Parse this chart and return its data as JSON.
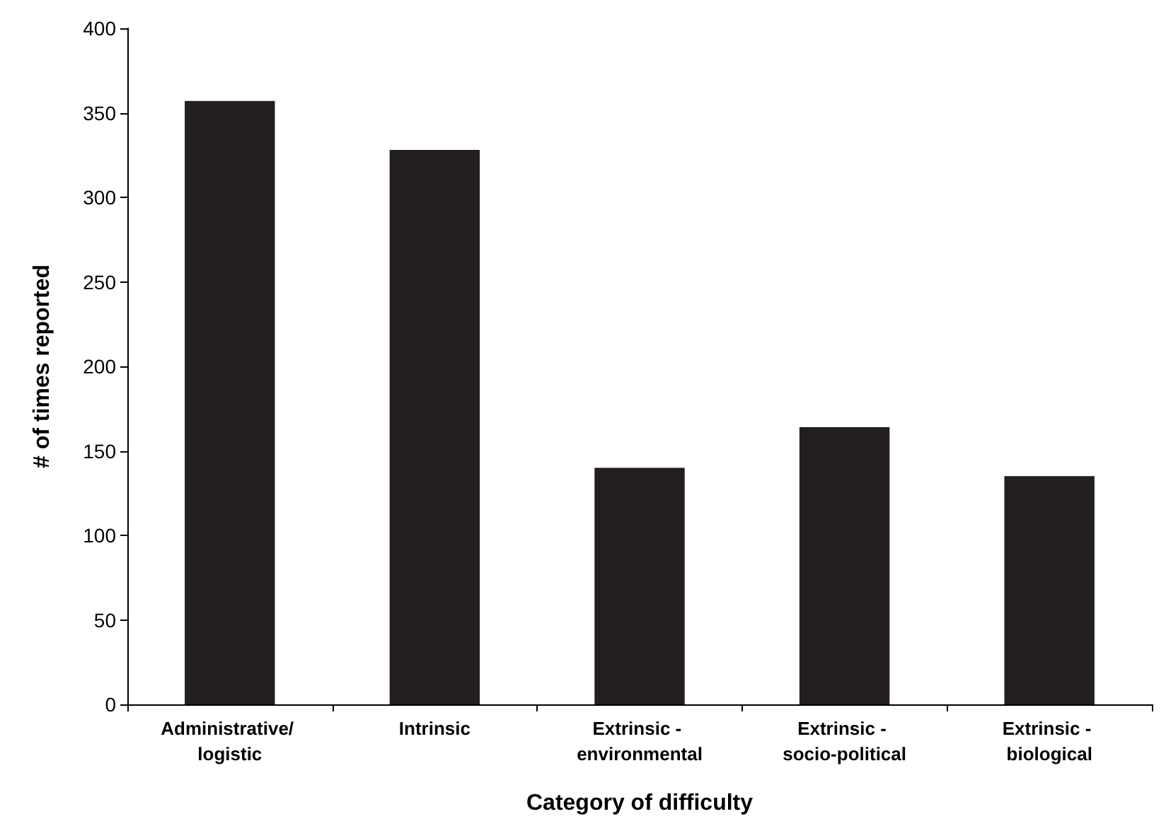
{
  "chart_data": {
    "type": "bar",
    "xlabel": "Category of difficulty",
    "ylabel": "# of times reported",
    "categories": [
      "Administrative/ logistic",
      "Intrinsic",
      "Extrinsic - environmental",
      "Extrinsic - socio-political",
      "Extrinsic - biological"
    ],
    "values": [
      357,
      328,
      140,
      164,
      135
    ],
    "color": "#231f20",
    "ylim": [
      0,
      400
    ],
    "yticks": [
      0,
      50,
      100,
      150,
      200,
      250,
      300,
      350,
      400
    ],
    "grid": false
  }
}
